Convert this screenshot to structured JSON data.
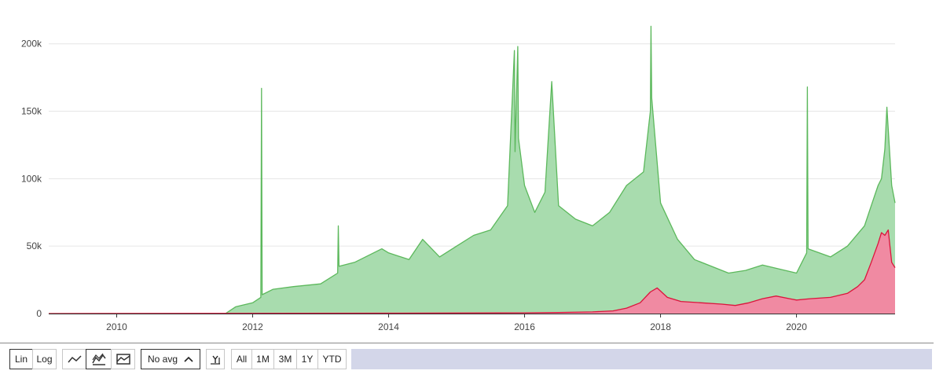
{
  "chart_data": {
    "type": "area",
    "title": "",
    "xlabel": "",
    "ylabel": "",
    "xlim": [
      2009.0,
      2021.45
    ],
    "ylim": [
      0,
      215000
    ],
    "y_ticks": [
      {
        "value": 0,
        "label": "0"
      },
      {
        "value": 50000,
        "label": "50k"
      },
      {
        "value": 100000,
        "label": "100k"
      },
      {
        "value": 150000,
        "label": "150k"
      },
      {
        "value": 200000,
        "label": "200k"
      }
    ],
    "x_ticks": [
      {
        "value": 2010,
        "label": "2010"
      },
      {
        "value": 2012,
        "label": "2012"
      },
      {
        "value": 2014,
        "label": "2014"
      },
      {
        "value": 2016,
        "label": "2016"
      },
      {
        "value": 2018,
        "label": "2018"
      },
      {
        "value": 2020,
        "label": "2020"
      }
    ],
    "grid": true,
    "legend": "none",
    "stacked": false,
    "series": [
      {
        "color": "#5cb85c",
        "fill": "#a8dcae",
        "x": [
          2009.0,
          2011.6,
          2011.75,
          2012.0,
          2012.12,
          2012.13,
          2012.14,
          2012.3,
          2012.6,
          2013.0,
          2013.25,
          2013.26,
          2013.27,
          2013.5,
          2013.9,
          2014.0,
          2014.3,
          2014.5,
          2014.75,
          2015.0,
          2015.25,
          2015.5,
          2015.75,
          2015.85,
          2015.86,
          2015.9,
          2015.91,
          2016.0,
          2016.15,
          2016.3,
          2016.4,
          2016.5,
          2016.75,
          2017.0,
          2017.25,
          2017.5,
          2017.75,
          2017.85,
          2017.86,
          2017.87,
          2018.0,
          2018.25,
          2018.5,
          2018.75,
          2019.0,
          2019.25,
          2019.5,
          2019.75,
          2020.0,
          2020.15,
          2020.16,
          2020.17,
          2020.5,
          2020.75,
          2021.0,
          2021.1,
          2021.2,
          2021.25,
          2021.3,
          2021.33,
          2021.4,
          2021.45
        ],
        "values": [
          0,
          0,
          5000,
          8000,
          12000,
          167000,
          14000,
          18000,
          20000,
          22000,
          30000,
          65000,
          35000,
          38000,
          48000,
          45000,
          40000,
          55000,
          42000,
          50000,
          58000,
          62000,
          80000,
          195000,
          120000,
          198000,
          130000,
          95000,
          75000,
          90000,
          172000,
          80000,
          70000,
          65000,
          75000,
          95000,
          105000,
          150000,
          213000,
          160000,
          82000,
          55000,
          40000,
          35000,
          30000,
          32000,
          36000,
          33000,
          30000,
          45000,
          168000,
          48000,
          42000,
          50000,
          65000,
          80000,
          95000,
          100000,
          122000,
          153000,
          95000,
          82000
        ]
      },
      {
        "color": "#dc143c",
        "fill": "#f08aa2",
        "x": [
          2009.0,
          2014.0,
          2016.0,
          2016.5,
          2017.0,
          2017.3,
          2017.5,
          2017.7,
          2017.85,
          2017.95,
          2018.1,
          2018.3,
          2018.6,
          2018.9,
          2019.1,
          2019.3,
          2019.5,
          2019.7,
          2019.9,
          2020.0,
          2020.2,
          2020.5,
          2020.75,
          2020.9,
          2021.0,
          2021.1,
          2021.2,
          2021.25,
          2021.3,
          2021.35,
          2021.4,
          2021.45
        ],
        "values": [
          0,
          300,
          500,
          800,
          1200,
          2000,
          4000,
          8000,
          16000,
          19000,
          12000,
          9000,
          8000,
          7000,
          6000,
          8000,
          11000,
          13000,
          11000,
          10000,
          11000,
          12000,
          15000,
          20000,
          25000,
          38000,
          52000,
          60000,
          58000,
          62000,
          38000,
          34000
        ]
      }
    ]
  },
  "toolbar": {
    "scale_lin": "Lin",
    "scale_log": "Log",
    "avg_select": "No avg",
    "range_all": "All",
    "range_1m": "1M",
    "range_3m": "3M",
    "range_1y": "1Y",
    "range_ytd": "YTD",
    "icons": [
      "line-chart-icon",
      "stacked-area-icon",
      "area-chart-icon",
      "chevron-up-icon",
      "y-axis-icon"
    ]
  }
}
